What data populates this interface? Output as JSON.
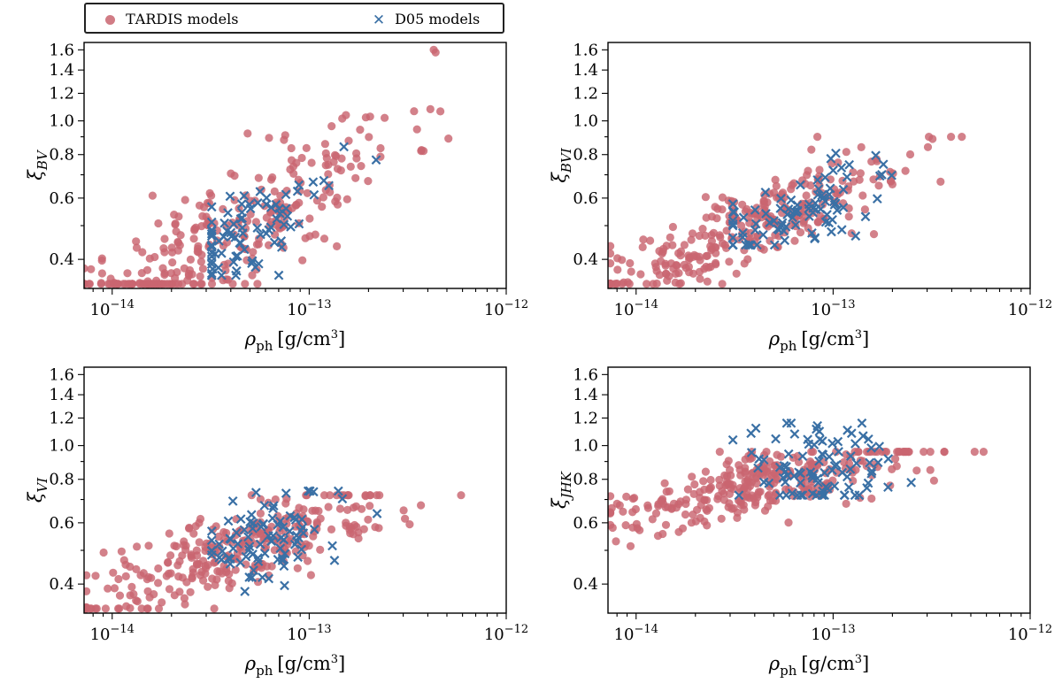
{
  "legend": {
    "tardis_prefix": "T",
    "tardis_caps": "ARDIS",
    "tardis_suffix": " models",
    "d05_label": "D05 models"
  },
  "colors": {
    "tardis": "#c96570",
    "d05": "#3a70a5"
  },
  "chart_data": [
    {
      "type": "scatter",
      "id": "bv",
      "ylabel_main": "ξ",
      "ylabel_sub": "BV",
      "xlabel_main": "ρ",
      "xlabel_sub": "ph",
      "xlabel_unit": "[g/cm",
      "xlabel_pow": "3",
      "xlabel_close": "]",
      "xlim": [
        7.2e-15,
        1e-12
      ],
      "ylim": [
        0.33,
        1.68
      ],
      "xscale": "log",
      "yscale": "log",
      "x_major_ticks": [
        {
          "v": 1e-14,
          "base": "10",
          "exp": "−14"
        },
        {
          "v": 1e-13,
          "base": "10",
          "exp": "−13"
        },
        {
          "v": 1e-12,
          "base": "10",
          "exp": "−12"
        }
      ],
      "y_tick_labels": [
        {
          "v": 0.4,
          "t": "0.4"
        },
        {
          "v": 0.6,
          "t": "0.6"
        },
        {
          "v": 0.8,
          "t": "0.8"
        },
        {
          "v": 1.0,
          "t": "1.0"
        },
        {
          "v": 1.2,
          "t": "1.2"
        },
        {
          "v": 1.4,
          "t": "1.4"
        },
        {
          "v": 1.6,
          "t": "1.6"
        }
      ],
      "y_minor_ticks": [
        0.5,
        0.7,
        0.9
      ],
      "series": [
        {
          "name": "TARDIS models",
          "marker": "circle",
          "cluster": {
            "seed": 11,
            "n": 300,
            "x0": 3.9e-14,
            "dx": 0.9,
            "x_lo": 7.2e-15,
            "x_hi": 9.6e-13,
            "y0": 0.47,
            "slope": 0.34,
            "scat": 0.095,
            "y_lo": 0.34,
            "y_hi": 1.6
          }
        },
        {
          "name": "D05 models",
          "marker": "x",
          "cluster": {
            "seed": 12,
            "n": 85,
            "x0": 5e-14,
            "dx": 0.45,
            "x_lo": 3.2e-14,
            "x_hi": 9.6e-13,
            "y0": 0.48,
            "slope": 0.34,
            "scat": 0.07,
            "y_lo": 0.36,
            "y_hi": 1.38
          }
        }
      ]
    },
    {
      "type": "scatter",
      "id": "bvi",
      "ylabel_main": "ξ",
      "ylabel_sub": "BVI",
      "xlabel_main": "ρ",
      "xlabel_sub": "ph",
      "xlabel_unit": "[g/cm",
      "xlabel_pow": "3",
      "xlabel_close": "]",
      "xlim": [
        7.2e-15,
        1e-12
      ],
      "ylim": [
        0.33,
        1.68
      ],
      "xscale": "log",
      "yscale": "log",
      "x_major_ticks": [
        {
          "v": 1e-14,
          "base": "10",
          "exp": "−14"
        },
        {
          "v": 1e-13,
          "base": "10",
          "exp": "−13"
        },
        {
          "v": 1e-12,
          "base": "10",
          "exp": "−12"
        }
      ],
      "y_tick_labels": [
        {
          "v": 0.4,
          "t": "0.4"
        },
        {
          "v": 0.6,
          "t": "0.6"
        },
        {
          "v": 0.8,
          "t": "0.8"
        },
        {
          "v": 1.0,
          "t": "1.0"
        },
        {
          "v": 1.2,
          "t": "1.2"
        },
        {
          "v": 1.4,
          "t": "1.4"
        },
        {
          "v": 1.6,
          "t": "1.6"
        }
      ],
      "y_minor_ticks": [
        0.5,
        0.7,
        0.9
      ],
      "series": [
        {
          "name": "TARDIS models",
          "marker": "circle",
          "cluster": {
            "seed": 21,
            "n": 300,
            "x0": 4e-14,
            "dx": 0.85,
            "x_lo": 7.4e-15,
            "x_hi": 9.8e-13,
            "y0": 0.5,
            "slope": 0.24,
            "scat": 0.055,
            "y_lo": 0.34,
            "y_hi": 0.9
          }
        },
        {
          "name": "D05 models",
          "marker": "x",
          "cluster": {
            "seed": 22,
            "n": 95,
            "x0": 6e-14,
            "dx": 0.42,
            "x_lo": 3.1e-14,
            "x_hi": 9.8e-13,
            "y0": 0.53,
            "slope": 0.24,
            "scat": 0.05,
            "y_lo": 0.44,
            "y_hi": 1.05
          }
        }
      ]
    },
    {
      "type": "scatter",
      "id": "vi",
      "ylabel_main": "ξ",
      "ylabel_sub": "VI",
      "xlabel_main": "ρ",
      "xlabel_sub": "ph",
      "xlabel_unit": "[g/cm",
      "xlabel_pow": "3",
      "xlabel_close": "]",
      "xlim": [
        7.2e-15,
        1e-12
      ],
      "ylim": [
        0.33,
        1.68
      ],
      "xscale": "log",
      "yscale": "log",
      "x_major_ticks": [
        {
          "v": 1e-14,
          "base": "10",
          "exp": "−14"
        },
        {
          "v": 1e-13,
          "base": "10",
          "exp": "−13"
        },
        {
          "v": 1e-12,
          "base": "10",
          "exp": "−12"
        }
      ],
      "y_tick_labels": [
        {
          "v": 0.4,
          "t": "0.4"
        },
        {
          "v": 0.6,
          "t": "0.6"
        },
        {
          "v": 0.8,
          "t": "0.8"
        },
        {
          "v": 1.0,
          "t": "1.0"
        },
        {
          "v": 1.2,
          "t": "1.2"
        },
        {
          "v": 1.4,
          "t": "1.4"
        },
        {
          "v": 1.6,
          "t": "1.6"
        }
      ],
      "y_minor_ticks": [
        0.5,
        0.7,
        0.9
      ],
      "series": [
        {
          "name": "TARDIS models",
          "marker": "circle",
          "cluster": {
            "seed": 31,
            "n": 300,
            "x0": 4e-14,
            "dx": 0.85,
            "x_lo": 7.4e-15,
            "x_hi": 9.8e-13,
            "y0": 0.49,
            "slope": 0.2,
            "scat": 0.06,
            "y_lo": 0.34,
            "y_hi": 0.72
          }
        },
        {
          "name": "D05 models",
          "marker": "x",
          "cluster": {
            "seed": 32,
            "n": 90,
            "x0": 6e-14,
            "dx": 0.42,
            "x_lo": 3.2e-14,
            "x_hi": 9.8e-13,
            "y0": 0.55,
            "slope": 0.15,
            "scat": 0.065,
            "y_lo": 0.38,
            "y_hi": 0.74
          }
        }
      ]
    },
    {
      "type": "scatter",
      "id": "jhk",
      "ylabel_main": "ξ",
      "ylabel_sub": "JHK",
      "xlabel_main": "ρ",
      "xlabel_sub": "ph",
      "xlabel_unit": "[g/cm",
      "xlabel_pow": "3",
      "xlabel_close": "]",
      "xlim": [
        7.2e-15,
        1e-12
      ],
      "ylim": [
        0.33,
        1.68
      ],
      "xscale": "log",
      "yscale": "log",
      "x_major_ticks": [
        {
          "v": 1e-14,
          "base": "10",
          "exp": "−14"
        },
        {
          "v": 1e-13,
          "base": "10",
          "exp": "−13"
        },
        {
          "v": 1e-12,
          "base": "10",
          "exp": "−12"
        }
      ],
      "y_tick_labels": [
        {
          "v": 0.4,
          "t": "0.4"
        },
        {
          "v": 0.6,
          "t": "0.6"
        },
        {
          "v": 0.8,
          "t": "0.8"
        },
        {
          "v": 1.0,
          "t": "1.0"
        },
        {
          "v": 1.2,
          "t": "1.2"
        },
        {
          "v": 1.4,
          "t": "1.4"
        },
        {
          "v": 1.6,
          "t": "1.6"
        }
      ],
      "y_minor_ticks": [
        0.5,
        0.7,
        0.9
      ],
      "series": [
        {
          "name": "TARDIS models",
          "marker": "circle",
          "cluster": {
            "seed": 41,
            "n": 300,
            "x0": 4.5e-14,
            "dx": 0.85,
            "x_lo": 7.4e-15,
            "x_hi": 9.8e-13,
            "y0": 0.78,
            "slope": 0.13,
            "scat": 0.045,
            "y_lo": 0.47,
            "y_hi": 0.96
          }
        },
        {
          "name": "D05 models",
          "marker": "x",
          "cluster": {
            "seed": 42,
            "n": 95,
            "x0": 8e-14,
            "dx": 0.4,
            "x_lo": 3.1e-14,
            "x_hi": 9.8e-13,
            "y0": 0.86,
            "slope": 0.0,
            "scat": 0.09,
            "y_lo": 0.72,
            "y_hi": 1.16
          }
        }
      ]
    }
  ]
}
